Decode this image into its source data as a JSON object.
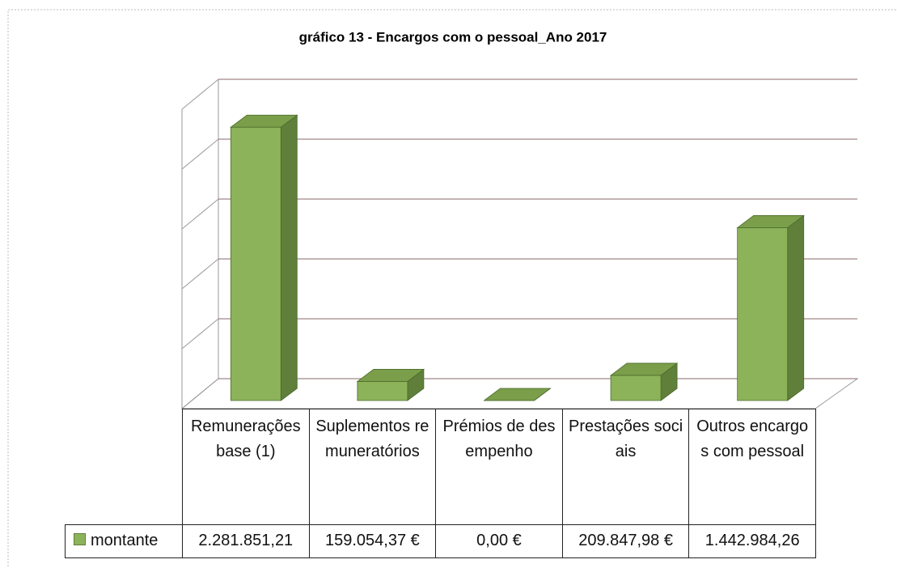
{
  "chart_data": {
    "type": "bar3d",
    "title": "gráfico 13 - Encargos com o pessoal_Ano 2017",
    "categories": [
      "Remunerações base (1)",
      "Suplementos remuneratórios",
      "Prémios de desempenho",
      "Prestações sociais",
      "Outros encargos com pessoal"
    ],
    "series": [
      {
        "name": "montante",
        "color": "#8db35a",
        "values": [
          2281851.21,
          159054.37,
          0,
          209847.98,
          1442984.26
        ],
        "value_labels": [
          "2.281.851,21",
          "159.054,37 €",
          "0,00 €",
          "209.847,98 €",
          "1.442.984,26"
        ]
      }
    ],
    "ylim": [
      0,
      2500000
    ],
    "yticks": [
      0,
      500000,
      1000000,
      1500000,
      2000000,
      2500000
    ],
    "grid": true
  }
}
